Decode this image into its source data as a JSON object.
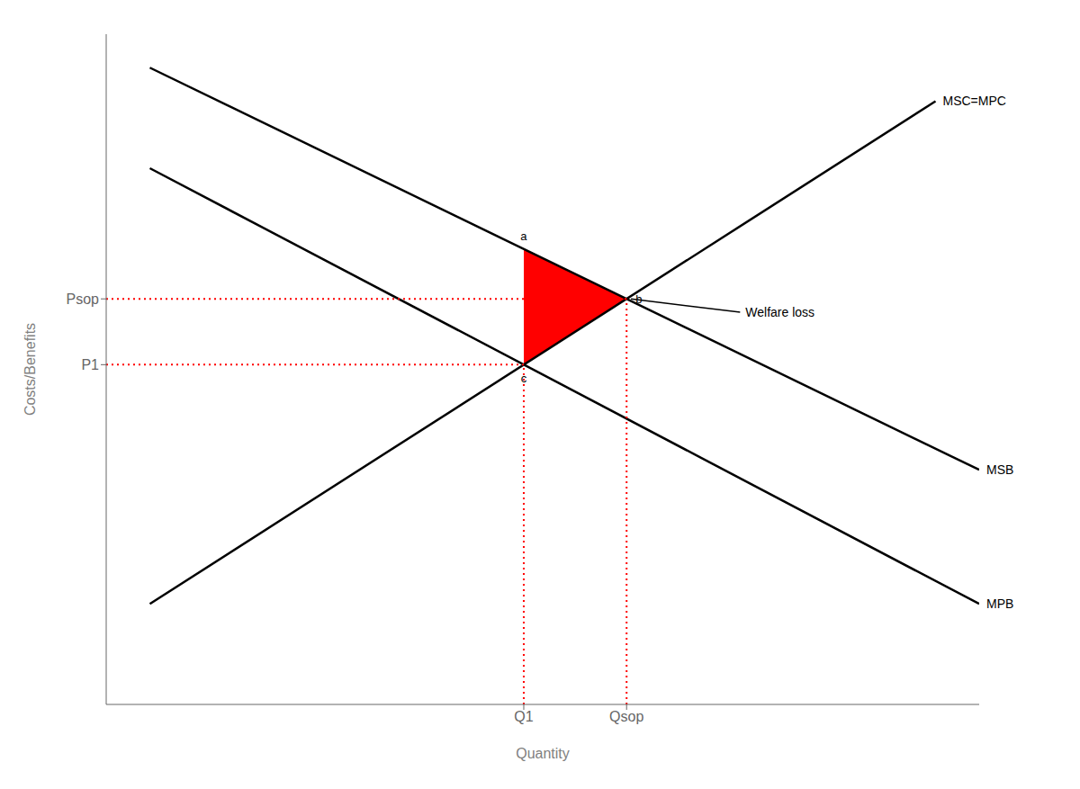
{
  "chart_data": {
    "type": "line",
    "xlabel": "Quantity",
    "ylabel": "Costs/Benefits",
    "xlim": [
      0,
      10
    ],
    "ylim": [
      0,
      10
    ],
    "xticks": [
      {
        "value": 4.7832,
        "label": "Q1"
      },
      {
        "value": 5.9611,
        "label": "Qsop"
      }
    ],
    "yticks": [
      {
        "value": 5.0694,
        "label": "P1"
      },
      {
        "value": 6.0509,
        "label": "Psop"
      }
    ],
    "grid": false,
    "series": [
      {
        "name": "MSC=MPC",
        "color": "#000000",
        "x": [
          0.5,
          9.5
        ],
        "values": [
          1.5,
          9.0
        ]
      },
      {
        "name": "MSB",
        "color": "#000000",
        "x": [
          0.5,
          10.0
        ],
        "values": [
          9.5,
          3.5
        ]
      },
      {
        "name": "MPB",
        "color": "#000000",
        "x": [
          0.5,
          10.0
        ],
        "values": [
          8.0,
          1.5
        ]
      }
    ],
    "welfare_loss": {
      "label": "Welfare loss",
      "color": "#ff0000",
      "points": [
        {
          "label": "a",
          "x": 4.7832,
          "y": 6.7948
        },
        {
          "label": "b",
          "x": 5.9611,
          "y": 6.0509
        },
        {
          "label": "c",
          "x": 4.7832,
          "y": 5.0694
        }
      ]
    },
    "reference_lines": {
      "color": "#ff0000",
      "line_style": "dotted",
      "segments": [
        {
          "x": [
            0,
            5.9611
          ],
          "y": [
            6.0509,
            6.0509
          ]
        },
        {
          "x": [
            0,
            4.7832
          ],
          "y": [
            5.0694,
            5.0694
          ]
        },
        {
          "x": [
            4.7832,
            4.7832
          ],
          "y": [
            0,
            5.0694
          ]
        },
        {
          "x": [
            5.9611,
            5.9611
          ],
          "y": [
            0,
            6.0509
          ]
        }
      ]
    }
  }
}
